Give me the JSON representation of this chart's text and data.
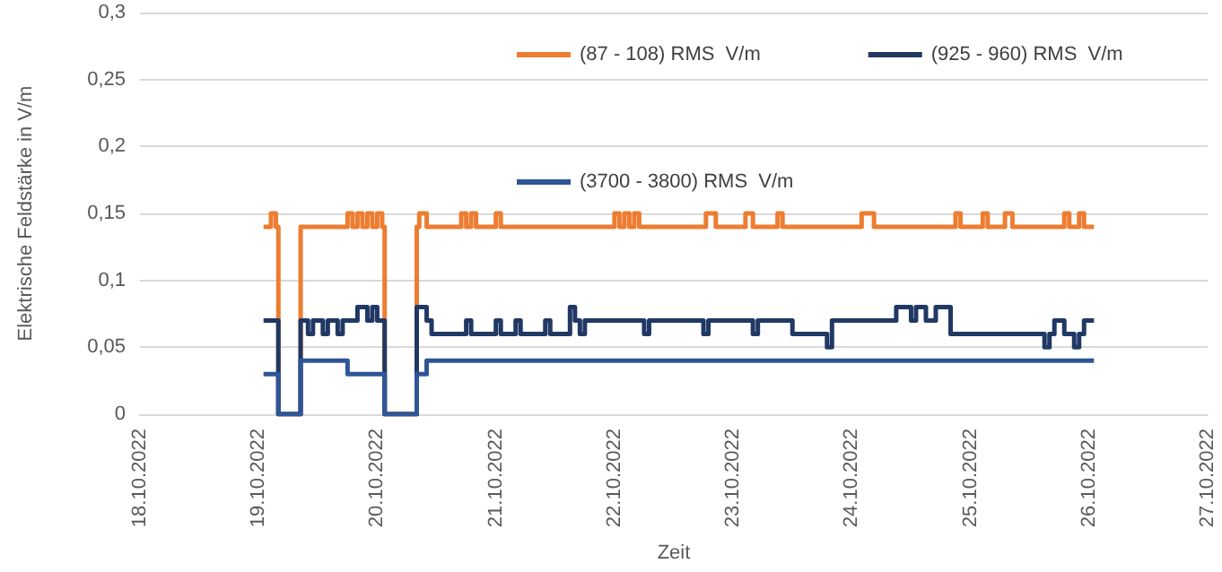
{
  "chart_data": {
    "type": "step",
    "xlabel": "Zeit",
    "ylabel": "Elektrische Feldstärke in V/m",
    "xlim": [
      "2022-10-18",
      "2022-10-27"
    ],
    "xticks": [
      {
        "value": "2022-10-18",
        "label": "18.10.2022"
      },
      {
        "value": "2022-10-19",
        "label": "19.10.2022"
      },
      {
        "value": "2022-10-20",
        "label": "20.10.2022"
      },
      {
        "value": "2022-10-21",
        "label": "21.10.2022"
      },
      {
        "value": "2022-10-22",
        "label": "22.10.2022"
      },
      {
        "value": "2022-10-23",
        "label": "23.10.2022"
      },
      {
        "value": "2022-10-24",
        "label": "24.10.2022"
      },
      {
        "value": "2022-10-25",
        "label": "25.10.2022"
      },
      {
        "value": "2022-10-26",
        "label": "26.10.2022"
      },
      {
        "value": "2022-10-27",
        "label": "27.10.2022"
      }
    ],
    "ylim": [
      0,
      0.3
    ],
    "yticks": [
      {
        "value": 0,
        "label": "0"
      },
      {
        "value": 0.05,
        "label": "0,05"
      },
      {
        "value": 0.1,
        "label": "0,1"
      },
      {
        "value": 0.15,
        "label": "0,15"
      },
      {
        "value": 0.2,
        "label": "0,2"
      },
      {
        "value": 0.25,
        "label": "0,25"
      },
      {
        "value": 0.3,
        "label": "0,3"
      }
    ],
    "grid": "y",
    "legend": "top right",
    "marker": "none",
    "line_style": "solid",
    "series": [
      {
        "name": "(87 - 108) RMS  V/m",
        "color": "#ed7d31",
        "x": [
          "2022-10-19T01:00",
          "2022-10-19T02:30",
          "2022-10-19T03:30",
          "2022-10-19T04:00",
          "2022-10-19T08:30",
          "2022-10-19T18:00",
          "2022-10-19T19:00",
          "2022-10-19T20:00",
          "2022-10-19T21:00",
          "2022-10-19T22:00",
          "2022-10-19T23:00",
          "2022-10-20T00:00",
          "2022-10-20T01:00",
          "2022-10-20T01:30",
          "2022-10-20T08:00",
          "2022-10-20T08:30",
          "2022-10-20T10:00",
          "2022-10-20T17:00",
          "2022-10-20T18:00",
          "2022-10-20T19:00",
          "2022-10-20T20:00",
          "2022-10-21T00:00",
          "2022-10-21T01:00",
          "2022-10-22T00:00",
          "2022-10-22T01:00",
          "2022-10-22T02:00",
          "2022-10-22T03:00",
          "2022-10-22T04:00",
          "2022-10-22T05:00",
          "2022-10-22T18:30",
          "2022-10-22T20:30",
          "2022-10-23T02:30",
          "2022-10-23T04:00",
          "2022-10-23T09:00",
          "2022-10-23T10:00",
          "2022-10-24T02:00",
          "2022-10-24T04:30",
          "2022-10-24T21:00",
          "2022-10-24T22:00",
          "2022-10-25T02:30",
          "2022-10-25T03:30",
          "2022-10-25T07:00",
          "2022-10-25T08:30",
          "2022-10-25T19:00",
          "2022-10-25T20:00",
          "2022-10-25T22:00",
          "2022-10-25T23:00",
          "2022-10-26T01:00"
        ],
        "values": [
          0.14,
          0.15,
          0.14,
          0,
          0.14,
          0.15,
          0.14,
          0.15,
          0.14,
          0.15,
          0.14,
          0.15,
          0.14,
          0,
          0.14,
          0.15,
          0.14,
          0.15,
          0.14,
          0.15,
          0.14,
          0.15,
          0.14,
          0.15,
          0.14,
          0.15,
          0.14,
          0.15,
          0.14,
          0.15,
          0.14,
          0.15,
          0.14,
          0.15,
          0.14,
          0.15,
          0.14,
          0.15,
          0.14,
          0.15,
          0.14,
          0.15,
          0.14,
          0.15,
          0.14,
          0.15,
          0.14,
          0.14
        ]
      },
      {
        "name": "(925 - 960) RMS  V/m",
        "color": "#203864",
        "x": [
          "2022-10-19T01:00",
          "2022-10-19T04:00",
          "2022-10-19T08:30",
          "2022-10-19T10:00",
          "2022-10-19T11:00",
          "2022-10-19T13:00",
          "2022-10-19T14:00",
          "2022-10-19T16:00",
          "2022-10-19T17:00",
          "2022-10-19T20:00",
          "2022-10-19T22:00",
          "2022-10-19T23:00",
          "2022-10-20T00:00",
          "2022-10-20T01:30",
          "2022-10-20T08:00",
          "2022-10-20T10:00",
          "2022-10-20T11:00",
          "2022-10-20T18:00",
          "2022-10-20T19:00",
          "2022-10-21T00:00",
          "2022-10-21T01:00",
          "2022-10-21T04:00",
          "2022-10-21T05:00",
          "2022-10-21T10:00",
          "2022-10-21T11:00",
          "2022-10-21T15:00",
          "2022-10-21T16:00",
          "2022-10-21T17:00",
          "2022-10-21T18:00",
          "2022-10-22T06:00",
          "2022-10-22T07:00",
          "2022-10-22T18:00",
          "2022-10-22T19:00",
          "2022-10-23T04:00",
          "2022-10-23T05:00",
          "2022-10-23T12:00",
          "2022-10-23T19:00",
          "2022-10-23T20:00",
          "2022-10-24T09:00",
          "2022-10-24T12:00",
          "2022-10-24T13:00",
          "2022-10-24T15:00",
          "2022-10-24T17:00",
          "2022-10-24T20:00",
          "2022-10-25T15:00",
          "2022-10-25T16:00",
          "2022-10-25T17:00",
          "2022-10-25T19:00",
          "2022-10-25T21:00",
          "2022-10-25T22:00",
          "2022-10-25T23:00",
          "2022-10-26T01:00"
        ],
        "values": [
          0.07,
          0,
          0.07,
          0.06,
          0.07,
          0.06,
          0.07,
          0.06,
          0.07,
          0.08,
          0.07,
          0.08,
          0.07,
          0,
          0.08,
          0.07,
          0.06,
          0.07,
          0.06,
          0.07,
          0.06,
          0.07,
          0.06,
          0.07,
          0.06,
          0.08,
          0.07,
          0.06,
          0.07,
          0.06,
          0.07,
          0.06,
          0.07,
          0.06,
          0.07,
          0.06,
          0.05,
          0.07,
          0.08,
          0.07,
          0.08,
          0.07,
          0.08,
          0.06,
          0.05,
          0.06,
          0.07,
          0.06,
          0.05,
          0.06,
          0.07,
          0.07
        ]
      },
      {
        "name": "(3700 - 3800) RMS  V/m",
        "color": "#2e5597",
        "x": [
          "2022-10-19T01:00",
          "2022-10-19T04:00",
          "2022-10-19T08:30",
          "2022-10-19T18:00",
          "2022-10-20T01:30",
          "2022-10-20T08:00",
          "2022-10-20T10:00",
          "2022-10-26T01:00"
        ],
        "values": [
          0.03,
          0,
          0.04,
          0.03,
          0,
          0.03,
          0.04,
          0.04
        ]
      }
    ]
  }
}
